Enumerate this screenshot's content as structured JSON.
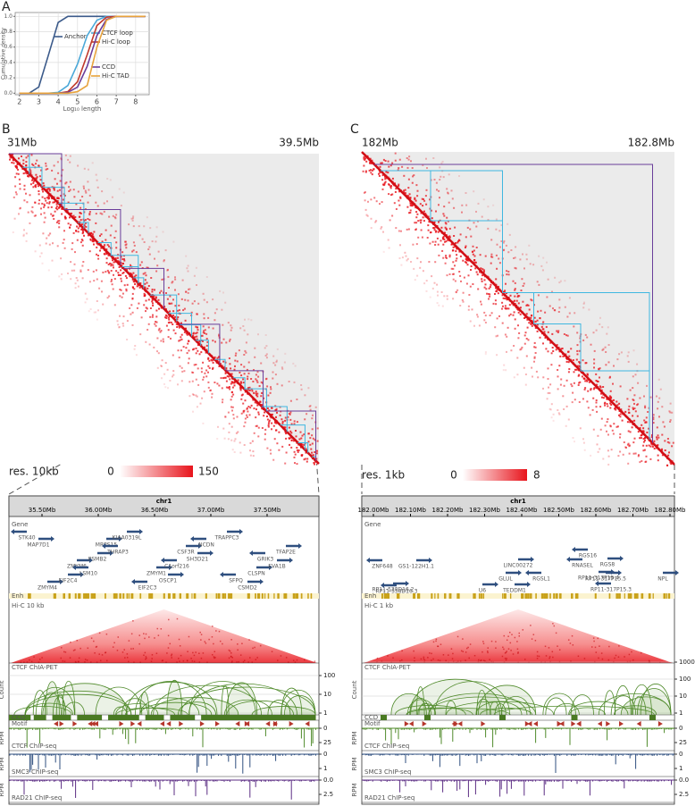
{
  "chart_data": {
    "type": "line",
    "label": "A",
    "xlabel": "Log₁₀ length",
    "ylabel": "Cumulative density",
    "x": [
      2,
      2.5,
      3,
      3.5,
      4,
      4.5,
      5,
      5.5,
      6,
      6.5,
      7,
      7.5,
      8,
      8.5
    ],
    "series": [
      {
        "name": "Anchor",
        "color": "#3b5a8a",
        "values": [
          0,
          0,
          0.08,
          0.5,
          0.92,
          1,
          1,
          1,
          1,
          1,
          1,
          1,
          1,
          1
        ]
      },
      {
        "name": "CTCF loop",
        "color": "#4aa8d8",
        "values": [
          0,
          0,
          0,
          0,
          0.01,
          0.1,
          0.38,
          0.75,
          0.95,
          1,
          1,
          1,
          1,
          1
        ]
      },
      {
        "name": "Hi-C loop",
        "color": "#c0392b",
        "values": [
          0,
          0,
          0,
          0,
          0,
          0.02,
          0.15,
          0.5,
          0.88,
          0.99,
          1,
          1,
          1,
          1
        ]
      },
      {
        "name": "CCD",
        "color": "#6a3d9a",
        "values": [
          0,
          0,
          0,
          0,
          0,
          0.01,
          0.08,
          0.35,
          0.75,
          0.96,
          1,
          1,
          1,
          1
        ]
      },
      {
        "name": "Hi-C TAD",
        "color": "#e8a33c",
        "values": [
          0,
          0,
          0,
          0,
          0,
          0,
          0.02,
          0.1,
          0.6,
          0.95,
          1,
          1,
          1,
          1
        ]
      }
    ],
    "xlim": [
      1.78,
      8.7
    ],
    "ylim": [
      -0.02,
      1.05
    ],
    "xticks": [
      2,
      3,
      4,
      5,
      6,
      7,
      8
    ],
    "yticks": [
      {
        "value": 0,
        "label": "0.0"
      },
      {
        "value": 0.2,
        "label": "0.2"
      },
      {
        "value": 0.4,
        "label": "0.4"
      },
      {
        "value": 0.6,
        "label": "0.6"
      },
      {
        "value": 0.8,
        "label": "0.8"
      },
      {
        "value": 1,
        "label": "1.0"
      }
    ],
    "grid": true
  },
  "panel_b": {
    "label": "B",
    "start": "31Mb",
    "end": "39.5Mb",
    "colorbar": {
      "title": "res. 10kb",
      "ticks": [
        0,
        150
      ]
    },
    "browser": {
      "chrom": "chr1",
      "ticks": [
        "35.50Mb",
        "36.00Mb",
        "36.50Mb",
        "37.00Mb",
        "37.50Mb"
      ],
      "gene": "Gene",
      "enh": "Enh",
      "hic": "Hi-C 10 kb",
      "chiapet": "CTCF ChIA-PET",
      "count": "Count",
      "count_ticks": [
        100,
        10,
        1
      ],
      "ccd": "CCD",
      "motif": "Motif",
      "rpm": "RPM",
      "ctcf": "CTCF ChIP-seq",
      "ctcf_ticks": [
        "0",
        "25"
      ],
      "smc3": "SMC3 ChIP-seq",
      "smc3_ticks": [
        "0",
        "1"
      ],
      "rad21": "RAD21 ChIP-seq",
      "rad21_ticks": [
        "0.0",
        "2.5"
      ],
      "genes": [
        "STK40",
        "MRPS15",
        "CSF3R",
        "GRIK3",
        "ZMYM6",
        "ZMYM1",
        "SFPQ",
        "ZMYM4",
        "KIAA0319L",
        "NCDN",
        "TFAP2E",
        "PSMB2",
        "C1orf216",
        "CLSPN",
        "EIF2C4",
        "EIF2C3",
        "TRAPPC3",
        "MAP7D1",
        "THRAP3",
        "SH3D21",
        "EVA1B",
        "LSM10",
        "OSCP1",
        "CSMD2"
      ]
    }
  },
  "panel_c": {
    "label": "C",
    "start": "182Mb",
    "end": "182.8Mb",
    "colorbar": {
      "title": "res. 1kb",
      "ticks": [
        0,
        8
      ]
    },
    "browser": {
      "chrom": "chr1",
      "ticks": [
        "182.00Mb",
        "182.10Mb",
        "182.20Mb",
        "182.30Mb",
        "182.40Mb",
        "182.50Mb",
        "182.60Mb",
        "182.70Mb",
        "182.80Mb"
      ],
      "gene": "Gene",
      "enh": "Enh",
      "hic": "Hi-C 1 kb",
      "chiapet": "CTCF ChIA-PET",
      "count": "Count",
      "count_ticks": [
        1000,
        100,
        10,
        1
      ],
      "ccd": "CCD",
      "motif": "Motif",
      "rpm": "RPM",
      "ctcf": "CTCF ChIP-seq",
      "ctcf_ticks": [
        "0",
        "25"
      ],
      "smc3": "SMC3 ChIP-seq",
      "smc3_ticks": [
        "0",
        "1"
      ],
      "rad21": "RAD21 ChIP-seq",
      "rad21_ticks": [
        "0.0",
        "2.5"
      ],
      "genes": [
        "RGS16",
        "RGS8",
        "RP11-317P15.4",
        "ZNF648",
        "GS1-122H1.1",
        "LINC00272",
        "RNASEL",
        "RP11-538D16.2",
        "GLUL",
        "RGSL1",
        "RP11-317P15.5",
        "NPL",
        "RP11-538D16.3",
        "U6",
        "TEDDM1",
        "RP11-317P15.3"
      ]
    }
  }
}
